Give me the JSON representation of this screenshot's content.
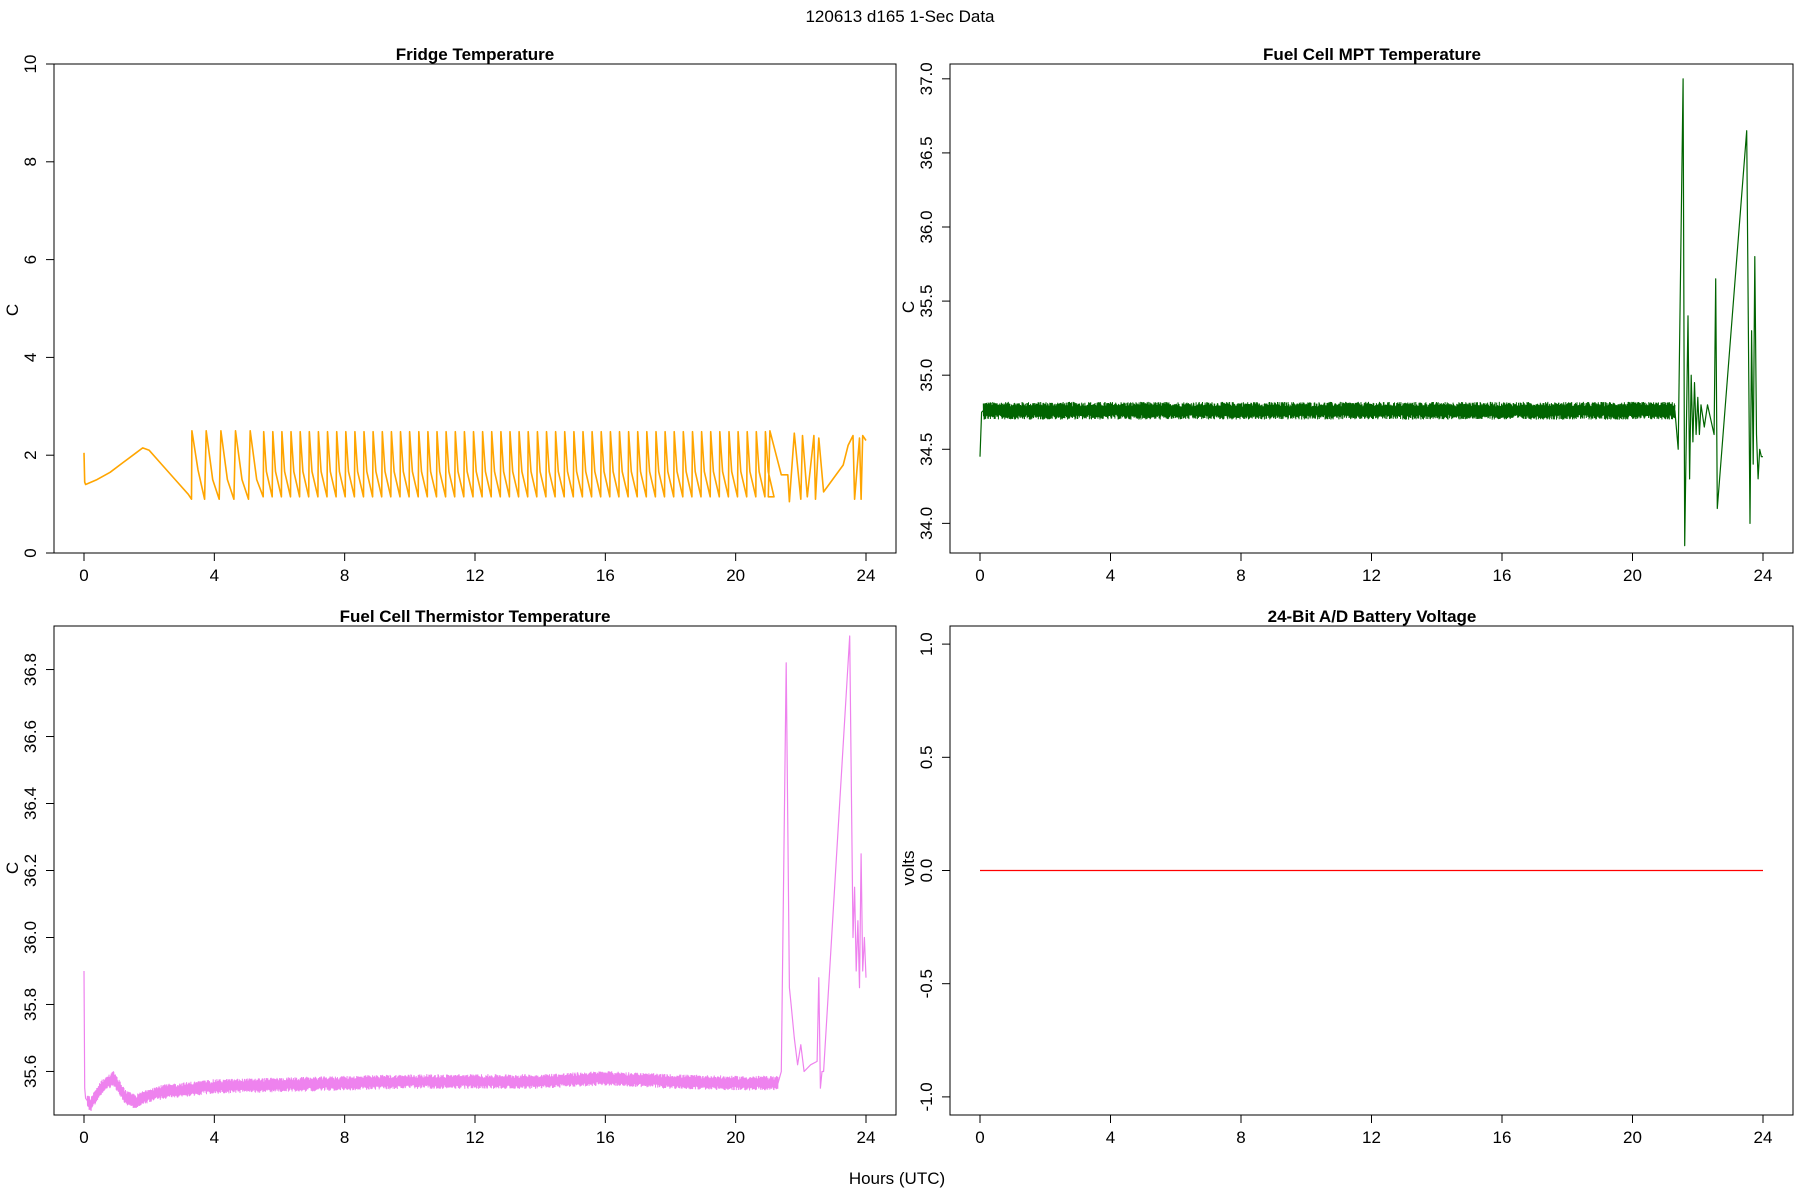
{
  "figure": {
    "title": "120613   d165   1-Sec Data",
    "xlabel": "Hours (UTC)"
  },
  "chart_data": [
    {
      "type": "line",
      "title": "Fridge Temperature",
      "ylabel": "C",
      "xlim": [
        0,
        24
      ],
      "ylim": [
        0,
        10
      ],
      "x_ticks": [
        0,
        4,
        8,
        12,
        16,
        20,
        24
      ],
      "x_tick_labels": [
        "0",
        "4",
        "8",
        "12",
        "16",
        "20",
        "24"
      ],
      "y_ticks": [
        0,
        2,
        4,
        6,
        8,
        10
      ],
      "y_tick_labels": [
        "0",
        "2",
        "4",
        "6",
        "8",
        "10"
      ],
      "series": [
        {
          "name": "fridge-temperature",
          "color": "#FFA500",
          "x": [
            0,
            0.02,
            0.05,
            0.4,
            0.8,
            1.2,
            1.6,
            1.8,
            2.0,
            2.4,
            2.8,
            3.2,
            3.3,
            3.31,
            3.5,
            3.7,
            3.75,
            3.95,
            4.15,
            4.2,
            4.4,
            4.6,
            4.65,
            4.85,
            5.05,
            5.1,
            5.3,
            5.5,
            21.0,
            21.05,
            21.4,
            21.5,
            21.6,
            21.65,
            21.8,
            22.0,
            22.05,
            22.2,
            22.4,
            22.45,
            22.55,
            22.7,
            23.3,
            23.45,
            23.6,
            23.65,
            23.8,
            23.85,
            23.9,
            24.0
          ],
          "y": [
            2.05,
            1.45,
            1.4,
            1.5,
            1.65,
            1.85,
            2.05,
            2.15,
            2.1,
            1.8,
            1.5,
            1.2,
            1.1,
            2.5,
            1.7,
            1.1,
            2.5,
            1.5,
            1.1,
            2.5,
            1.5,
            1.1,
            2.5,
            1.5,
            1.1,
            2.5,
            1.5,
            1.15,
            1.15,
            2.5,
            1.6,
            1.6,
            1.6,
            1.05,
            2.45,
            1.1,
            2.4,
            1.15,
            2.4,
            1.1,
            2.35,
            1.25,
            1.8,
            2.2,
            2.4,
            1.1,
            2.35,
            1.1,
            2.4,
            2.3
          ],
          "cycles": {
            "x_start": 5.5,
            "x_end": 21.0,
            "period_hours": 0.28,
            "min": 1.15,
            "max": 2.48
          }
        }
      ]
    },
    {
      "type": "line",
      "title": "Fuel Cell MPT Temperature",
      "ylabel": "C",
      "xlim": [
        0,
        24
      ],
      "ylim": [
        33.8,
        37.1
      ],
      "x_ticks": [
        0,
        4,
        8,
        12,
        16,
        20,
        24
      ],
      "x_tick_labels": [
        "0",
        "4",
        "8",
        "12",
        "16",
        "20",
        "24"
      ],
      "y_ticks": [
        34.0,
        34.5,
        35.0,
        35.5,
        36.0,
        36.5,
        37.0
      ],
      "y_tick_labels": [
        "34.0",
        "34.5",
        "35.0",
        "35.5",
        "36.0",
        "36.5",
        "37.0"
      ],
      "series": [
        {
          "name": "mpt-temperature",
          "color": "#006400",
          "x": [
            0,
            0.05,
            0.1,
            21.3,
            21.4,
            21.55,
            21.6,
            21.7,
            21.75,
            21.8,
            21.85,
            21.9,
            21.95,
            22.0,
            22.05,
            22.1,
            22.2,
            22.3,
            22.4,
            22.5,
            22.55,
            22.6,
            23.5,
            23.6,
            23.65,
            23.7,
            23.75,
            23.8,
            23.85,
            23.9,
            23.95,
            24.0
          ],
          "y": [
            34.45,
            34.75,
            34.76,
            34.76,
            34.5,
            37.0,
            33.85,
            35.4,
            34.3,
            35.0,
            34.55,
            34.95,
            34.6,
            34.85,
            34.6,
            34.8,
            34.65,
            34.8,
            34.7,
            34.6,
            35.65,
            34.1,
            36.65,
            34.0,
            35.3,
            34.4,
            35.8,
            34.6,
            34.3,
            34.5,
            34.45,
            34.45
          ],
          "noise": {
            "x_start": 0.1,
            "x_end": 21.3,
            "center": 34.76,
            "amplitude": 0.06
          }
        }
      ]
    },
    {
      "type": "line",
      "title": "Fuel Cell Thermistor Temperature",
      "ylabel": "C",
      "xlim": [
        0,
        24
      ],
      "ylim": [
        35.47,
        36.93
      ],
      "x_ticks": [
        0,
        4,
        8,
        12,
        16,
        20,
        24
      ],
      "x_tick_labels": [
        "0",
        "4",
        "8",
        "12",
        "16",
        "20",
        "24"
      ],
      "y_ticks": [
        35.6,
        35.8,
        36.0,
        36.2,
        36.4,
        36.6,
        36.8
      ],
      "y_tick_labels": [
        "35.6",
        "35.8",
        "36.0",
        "36.2",
        "36.4",
        "36.6",
        "36.8"
      ],
      "series": [
        {
          "name": "thermistor-temperature",
          "color": "#EE82EE",
          "x": [
            0,
            0.02,
            0.05,
            0.2,
            0.5,
            0.9,
            1.3,
            1.6,
            2.0,
            2.5,
            3.0,
            4.0,
            6.0,
            8.0,
            10.0,
            12.0,
            14.0,
            16.0,
            18.0,
            20.0,
            21.3,
            21.4,
            21.55,
            21.65,
            21.7,
            21.8,
            21.9,
            22.0,
            22.1,
            22.3,
            22.5,
            22.55,
            22.6,
            22.65,
            22.7,
            23.5,
            23.6,
            23.65,
            23.7,
            23.75,
            23.8,
            23.85,
            23.9,
            23.95,
            24.0
          ],
          "y": [
            35.9,
            35.55,
            35.52,
            35.5,
            35.55,
            35.58,
            35.52,
            35.51,
            35.53,
            35.54,
            35.545,
            35.555,
            35.56,
            35.565,
            35.57,
            35.57,
            35.57,
            35.58,
            35.57,
            35.565,
            35.565,
            35.6,
            36.82,
            35.85,
            35.8,
            35.7,
            35.62,
            35.68,
            35.6,
            35.62,
            35.63,
            35.88,
            35.55,
            35.6,
            35.6,
            36.9,
            36.0,
            36.15,
            35.9,
            36.05,
            35.85,
            36.25,
            35.9,
            36.0,
            35.88
          ],
          "noise": {
            "x_start": 0.1,
            "x_end": 21.3,
            "amplitude": 0.022
          }
        }
      ]
    },
    {
      "type": "line",
      "title": "24-Bit A/D Battery Voltage",
      "ylabel": "volts",
      "xlim": [
        0,
        24
      ],
      "ylim": [
        -1.08,
        1.08
      ],
      "x_ticks": [
        0,
        4,
        8,
        12,
        16,
        20,
        24
      ],
      "x_tick_labels": [
        "0",
        "4",
        "8",
        "12",
        "16",
        "20",
        "24"
      ],
      "y_ticks": [
        -1.0,
        -0.5,
        0.0,
        0.5,
        1.0
      ],
      "y_tick_labels": [
        "-1.0",
        "-0.5",
        "0.0",
        "0.5",
        "1.0"
      ],
      "series": [
        {
          "name": "battery-voltage",
          "color": "#FF0000",
          "x": [
            0,
            24
          ],
          "y": [
            0.0,
            0.0
          ]
        }
      ]
    }
  ]
}
